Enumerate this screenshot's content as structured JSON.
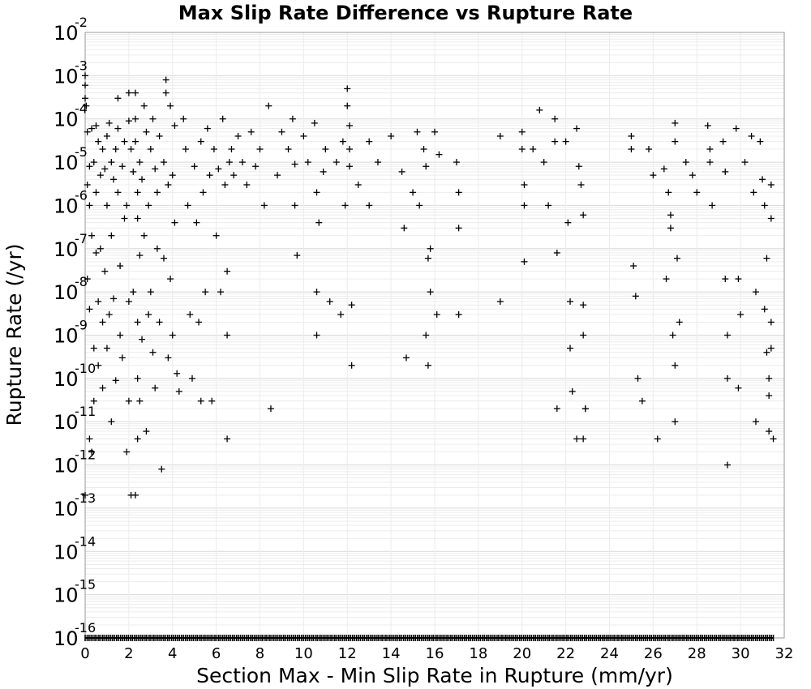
{
  "chart_data": {
    "type": "scatter",
    "title": "Max Slip Rate Difference vs Rupture Rate",
    "xlabel": "Section Max - Min Slip Rate in Rupture (mm/yr)",
    "ylabel": "Rupture Rate (/yr)",
    "xlim": [
      0,
      32
    ],
    "ylim": [
      1e-16,
      0.01
    ],
    "yscale": "log",
    "grid": true,
    "legend": "none",
    "marker": "plus",
    "marker_color": "#000000",
    "x_ticks": [
      "0",
      "2",
      "4",
      "6",
      "8",
      "10",
      "12",
      "14",
      "16",
      "18",
      "20",
      "22",
      "24",
      "26",
      "28",
      "30",
      "32"
    ],
    "y_ticks": [
      {
        "base": "10",
        "exp": "-2"
      },
      {
        "base": "10",
        "exp": "-3"
      },
      {
        "base": "10",
        "exp": "-4"
      },
      {
        "base": "10",
        "exp": "-5"
      },
      {
        "base": "10",
        "exp": "-6"
      },
      {
        "base": "10",
        "exp": "-7"
      },
      {
        "base": "10",
        "exp": "-8"
      },
      {
        "base": "10",
        "exp": "-9"
      },
      {
        "base": "10",
        "exp": "-10"
      },
      {
        "base": "10",
        "exp": "-11"
      },
      {
        "base": "10",
        "exp": "-12"
      },
      {
        "base": "10",
        "exp": "-13"
      },
      {
        "base": "10",
        "exp": "-14"
      },
      {
        "base": "10",
        "exp": "-15"
      },
      {
        "base": "10",
        "exp": "-16"
      }
    ],
    "points": [
      [
        0.0,
        0.001
      ],
      [
        0.0,
        0.0006
      ],
      [
        0.0,
        0.0003
      ],
      [
        0.05,
        0.0002
      ],
      [
        0.0,
        2e-13
      ],
      [
        0.1,
        5e-05
      ],
      [
        0.1,
        3e-06
      ],
      [
        0.1,
        2e-08
      ],
      [
        0.2,
        8e-06
      ],
      [
        0.2,
        1e-06
      ],
      [
        0.2,
        4e-09
      ],
      [
        0.2,
        4e-12
      ],
      [
        0.3,
        2e-12
      ],
      [
        0.3,
        6e-05
      ],
      [
        0.3,
        2e-07
      ],
      [
        0.4,
        1e-05
      ],
      [
        0.4,
        5e-10
      ],
      [
        0.4,
        3e-11
      ],
      [
        0.5,
        7e-05
      ],
      [
        0.5,
        2e-06
      ],
      [
        0.5,
        8e-08
      ],
      [
        0.6,
        3e-05
      ],
      [
        0.6,
        6e-09
      ],
      [
        0.6,
        2e-10
      ],
      [
        0.7,
        5e-06
      ],
      [
        0.7,
        1e-07
      ],
      [
        0.8,
        2e-05
      ],
      [
        0.8,
        2e-09
      ],
      [
        0.8,
        6e-11
      ],
      [
        0.9,
        7e-06
      ],
      [
        0.9,
        3e-08
      ],
      [
        1.0,
        4e-05
      ],
      [
        1.0,
        1e-06
      ],
      [
        1.0,
        5e-10
      ],
      [
        1.1,
        8e-05
      ],
      [
        1.1,
        3e-09
      ],
      [
        1.2,
        1e-05
      ],
      [
        1.2,
        2e-07
      ],
      [
        1.2,
        1e-11
      ],
      [
        1.3,
        4e-06
      ],
      [
        1.3,
        7e-09
      ],
      [
        1.4,
        2e-05
      ],
      [
        1.4,
        9e-11
      ],
      [
        1.5,
        0.0003
      ],
      [
        1.5,
        6e-05
      ],
      [
        1.5,
        2e-06
      ],
      [
        1.6,
        4e-08
      ],
      [
        1.6,
        1e-09
      ],
      [
        1.7,
        8e-06
      ],
      [
        1.7,
        3e-10
      ],
      [
        1.8,
        3e-05
      ],
      [
        1.8,
        5e-07
      ],
      [
        1.9,
        1e-06
      ],
      [
        1.9,
        2e-12
      ],
      [
        2.0,
        0.0004
      ],
      [
        2.0,
        9e-05
      ],
      [
        2.0,
        6e-09
      ],
      [
        2.0,
        3e-11
      ],
      [
        2.1,
        2e-05
      ],
      [
        2.1,
        2e-13
      ],
      [
        2.2,
        6e-06
      ],
      [
        2.2,
        1e-08
      ],
      [
        2.3,
        0.0004
      ],
      [
        2.3,
        0.0001
      ],
      [
        2.3,
        3e-05
      ],
      [
        2.3,
        2e-13
      ],
      [
        2.4,
        2e-06
      ],
      [
        2.4,
        5e-07
      ],
      [
        2.4,
        2e-09
      ],
      [
        2.4,
        1e-10
      ],
      [
        2.4,
        4e-12
      ],
      [
        2.5,
        1e-05
      ],
      [
        2.5,
        7e-08
      ],
      [
        2.5,
        3e-11
      ],
      [
        2.6,
        4e-06
      ],
      [
        2.6,
        8e-10
      ],
      [
        2.7,
        0.0002
      ],
      [
        2.7,
        2e-07
      ],
      [
        2.8,
        5e-05
      ],
      [
        2.8,
        6e-12
      ],
      [
        2.9,
        1e-06
      ],
      [
        2.9,
        3e-09
      ],
      [
        3.0,
        2e-05
      ],
      [
        3.0,
        1e-08
      ],
      [
        3.1,
        0.0001
      ],
      [
        3.1,
        4e-10
      ],
      [
        3.2,
        7e-06
      ],
      [
        3.2,
        6e-11
      ],
      [
        3.3,
        2e-06
      ],
      [
        3.3,
        1e-07
      ],
      [
        3.4,
        4e-05
      ],
      [
        3.4,
        2e-09
      ],
      [
        3.5,
        8e-13
      ],
      [
        3.6,
        1e-05
      ],
      [
        3.6,
        6e-08
      ],
      [
        3.7,
        0.0004
      ],
      [
        3.7,
        0.0008
      ],
      [
        3.8,
        3e-06
      ],
      [
        3.8,
        3e-10
      ],
      [
        3.9,
        0.0002
      ],
      [
        3.9,
        2e-08
      ],
      [
        4.0,
        5e-06
      ],
      [
        4.0,
        1e-09
      ],
      [
        4.1,
        7e-05
      ],
      [
        4.1,
        4e-07
      ],
      [
        4.2,
        1.3e-10
      ],
      [
        4.3,
        5e-11
      ],
      [
        4.5,
        0.0001
      ],
      [
        4.6,
        2e-05
      ],
      [
        4.7,
        1e-06
      ],
      [
        4.8,
        3e-09
      ],
      [
        4.9,
        1e-10
      ],
      [
        5.0,
        8e-06
      ],
      [
        5.1,
        4e-07
      ],
      [
        5.2,
        2e-09
      ],
      [
        5.3,
        3e-05
      ],
      [
        5.3,
        3e-11
      ],
      [
        5.4,
        2e-06
      ],
      [
        5.5,
        1e-08
      ],
      [
        5.6,
        6e-05
      ],
      [
        5.7,
        5e-06
      ],
      [
        5.8,
        3e-11
      ],
      [
        5.9,
        2e-05
      ],
      [
        6.0,
        2e-07
      ],
      [
        6.1,
        7e-06
      ],
      [
        6.2,
        1e-08
      ],
      [
        6.3,
        0.0001
      ],
      [
        6.4,
        3e-06
      ],
      [
        6.5,
        3e-08
      ],
      [
        6.5,
        1e-09
      ],
      [
        6.5,
        4e-12
      ],
      [
        6.6,
        1e-05
      ],
      [
        6.7,
        2e-05
      ],
      [
        6.8,
        5e-06
      ],
      [
        7.0,
        4e-05
      ],
      [
        7.2,
        1e-05
      ],
      [
        7.4,
        3e-06
      ],
      [
        7.6,
        5e-05
      ],
      [
        7.8,
        8e-06
      ],
      [
        8.0,
        2e-05
      ],
      [
        8.2,
        1e-06
      ],
      [
        8.4,
        0.0002
      ],
      [
        8.5,
        2e-11
      ],
      [
        8.8,
        5e-06
      ],
      [
        9.0,
        5e-05
      ],
      [
        9.3,
        2e-05
      ],
      [
        9.5,
        0.0001
      ],
      [
        9.6,
        9e-06
      ],
      [
        9.6,
        1e-06
      ],
      [
        9.7,
        7e-08
      ],
      [
        10.0,
        4e-05
      ],
      [
        10.2,
        1e-05
      ],
      [
        10.5,
        8e-05
      ],
      [
        10.6,
        2e-06
      ],
      [
        10.6,
        1e-08
      ],
      [
        10.6,
        1e-09
      ],
      [
        10.7,
        4e-07
      ],
      [
        10.9,
        6e-06
      ],
      [
        11.0,
        2e-05
      ],
      [
        11.2,
        6e-09
      ],
      [
        11.5,
        1e-05
      ],
      [
        11.7,
        3e-09
      ],
      [
        11.8,
        3e-05
      ],
      [
        11.9,
        1e-06
      ],
      [
        12.0,
        0.0005
      ],
      [
        12.0,
        0.0002
      ],
      [
        12.1,
        7e-05
      ],
      [
        12.1,
        2e-05
      ],
      [
        12.1,
        8e-06
      ],
      [
        12.2,
        5e-09
      ],
      [
        12.2,
        2e-10
      ],
      [
        12.5,
        3e-06
      ],
      [
        13.0,
        3e-05
      ],
      [
        13.0,
        1e-06
      ],
      [
        13.4,
        1e-05
      ],
      [
        14.0,
        4e-05
      ],
      [
        14.5,
        6e-06
      ],
      [
        14.6,
        3e-07
      ],
      [
        14.7,
        3e-10
      ],
      [
        15.0,
        2e-06
      ],
      [
        15.2,
        5e-05
      ],
      [
        15.3,
        1e-06
      ],
      [
        15.5,
        2e-05
      ],
      [
        15.6,
        8e-06
      ],
      [
        15.6,
        1e-09
      ],
      [
        15.7,
        6e-08
      ],
      [
        15.7,
        2e-10
      ],
      [
        15.8,
        1e-07
      ],
      [
        15.8,
        1e-08
      ],
      [
        16.0,
        5e-05
      ],
      [
        16.1,
        3e-09
      ],
      [
        16.2,
        1.5e-05
      ],
      [
        17.0,
        1e-05
      ],
      [
        17.1,
        2e-06
      ],
      [
        17.1,
        3e-07
      ],
      [
        17.1,
        3e-09
      ],
      [
        19.0,
        6e-09
      ],
      [
        19.0,
        4e-05
      ],
      [
        20.0,
        2e-05
      ],
      [
        20.0,
        5e-05
      ],
      [
        20.1,
        3e-06
      ],
      [
        20.1,
        1e-06
      ],
      [
        20.1,
        5e-08
      ],
      [
        20.5,
        2e-05
      ],
      [
        20.8,
        0.00016
      ],
      [
        21.0,
        1e-05
      ],
      [
        21.2,
        1e-06
      ],
      [
        21.5,
        0.0001
      ],
      [
        21.5,
        3e-05
      ],
      [
        21.6,
        8e-08
      ],
      [
        21.6,
        2e-11
      ],
      [
        22.0,
        3e-05
      ],
      [
        22.1,
        4e-07
      ],
      [
        22.2,
        6e-09
      ],
      [
        22.2,
        5e-10
      ],
      [
        22.3,
        5e-11
      ],
      [
        22.5,
        6e-05
      ],
      [
        22.5,
        4e-12
      ],
      [
        22.6,
        8e-06
      ],
      [
        22.7,
        3e-06
      ],
      [
        22.8,
        6e-07
      ],
      [
        22.8,
        1e-09
      ],
      [
        22.8,
        5e-09
      ],
      [
        22.9,
        2e-11
      ],
      [
        22.9,
        2e-11
      ],
      [
        22.8,
        4e-12
      ],
      [
        25.0,
        4e-05
      ],
      [
        25.0,
        2e-05
      ],
      [
        25.1,
        4e-08
      ],
      [
        25.2,
        8e-09
      ],
      [
        25.3,
        1e-10
      ],
      [
        25.5,
        3e-11
      ],
      [
        25.8,
        2e-05
      ],
      [
        26.0,
        5e-06
      ],
      [
        26.2,
        4e-12
      ],
      [
        26.5,
        7e-06
      ],
      [
        26.6,
        2e-08
      ],
      [
        26.7,
        2e-06
      ],
      [
        26.8,
        6e-07
      ],
      [
        26.8,
        3e-07
      ],
      [
        26.9,
        1e-09
      ],
      [
        27.0,
        8e-05
      ],
      [
        27.0,
        3e-05
      ],
      [
        27.0,
        2e-10
      ],
      [
        27.0,
        1e-11
      ],
      [
        27.1,
        6e-08
      ],
      [
        27.2,
        2e-09
      ],
      [
        27.5,
        1e-05
      ],
      [
        27.8,
        5e-06
      ],
      [
        28.0,
        2e-06
      ],
      [
        28.5,
        7e-05
      ],
      [
        28.6,
        2e-05
      ],
      [
        28.6,
        1e-05
      ],
      [
        28.7,
        1e-06
      ],
      [
        29.2,
        3e-05
      ],
      [
        29.3,
        6e-06
      ],
      [
        29.3,
        2e-08
      ],
      [
        29.4,
        1e-09
      ],
      [
        29.4,
        1e-10
      ],
      [
        29.4,
        1e-12
      ],
      [
        29.8,
        6e-05
      ],
      [
        29.9,
        2e-08
      ],
      [
        29.9,
        6e-11
      ],
      [
        30.0,
        3e-09
      ],
      [
        30.2,
        1e-05
      ],
      [
        30.5,
        4e-05
      ],
      [
        30.6,
        2e-06
      ],
      [
        30.7,
        1e-08
      ],
      [
        30.7,
        1e-11
      ],
      [
        30.9,
        3e-05
      ],
      [
        31.0,
        4e-06
      ],
      [
        31.1,
        1e-06
      ],
      [
        31.1,
        4e-09
      ],
      [
        31.2,
        6e-08
      ],
      [
        31.2,
        4e-10
      ],
      [
        31.3,
        1e-10
      ],
      [
        31.3,
        4e-11
      ],
      [
        31.3,
        6e-12
      ],
      [
        31.4,
        3e-06
      ],
      [
        31.4,
        5e-07
      ],
      [
        31.4,
        2e-09
      ],
      [
        31.4,
        5e-10
      ],
      [
        31.5,
        4e-12
      ]
    ],
    "floor_value": 1e-16,
    "floor_x_range": [
      0,
      31.5
    ]
  }
}
